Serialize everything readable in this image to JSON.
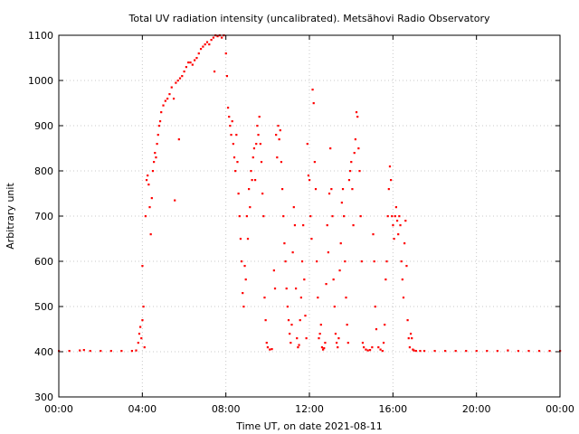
{
  "chart_data": {
    "type": "scatter",
    "title": "Total UV radiation intensity (uncalibrated). Metsähovi Radio Observatory",
    "xlabel": "Time UT, on date 2021-08-11",
    "ylabel": "Arbitrary unit",
    "xlim": [
      0,
      24
    ],
    "ylim": [
      300,
      1100
    ],
    "x_unit": "hours UT",
    "grid": true,
    "legend": "none",
    "xticks": [
      {
        "value": 0,
        "label": "00:00"
      },
      {
        "value": 4,
        "label": "04:00"
      },
      {
        "value": 8,
        "label": "08:00"
      },
      {
        "value": 12,
        "label": "12:00"
      },
      {
        "value": 16,
        "label": "16:00"
      },
      {
        "value": 20,
        "label": "20:00"
      },
      {
        "value": 24,
        "label": "00:00"
      }
    ],
    "yticks": [
      300,
      400,
      500,
      600,
      700,
      800,
      900,
      1000,
      1100
    ],
    "series": [
      {
        "color": "#ff0000",
        "points": [
          [
            0.0,
            402
          ],
          [
            0.5,
            402
          ],
          [
            1.0,
            403
          ],
          [
            1.2,
            404
          ],
          [
            1.5,
            402
          ],
          [
            2.0,
            402
          ],
          [
            2.5,
            402
          ],
          [
            3.0,
            402
          ],
          [
            3.5,
            402
          ],
          [
            3.7,
            403
          ],
          [
            3.8,
            420
          ],
          [
            3.85,
            440
          ],
          [
            3.9,
            455
          ],
          [
            3.95,
            430
          ],
          [
            4.0,
            470
          ],
          [
            4.0,
            590
          ],
          [
            4.05,
            500
          ],
          [
            4.1,
            410
          ],
          [
            4.15,
            700
          ],
          [
            4.2,
            780
          ],
          [
            4.25,
            790
          ],
          [
            4.3,
            770
          ],
          [
            4.35,
            720
          ],
          [
            4.4,
            660
          ],
          [
            4.45,
            740
          ],
          [
            4.5,
            800
          ],
          [
            4.55,
            820
          ],
          [
            4.6,
            840
          ],
          [
            4.65,
            830
          ],
          [
            4.7,
            860
          ],
          [
            4.75,
            880
          ],
          [
            4.8,
            900
          ],
          [
            4.85,
            910
          ],
          [
            4.9,
            930
          ],
          [
            5.0,
            945
          ],
          [
            5.1,
            955
          ],
          [
            5.2,
            960
          ],
          [
            5.3,
            970
          ],
          [
            5.4,
            985
          ],
          [
            5.5,
            960
          ],
          [
            5.55,
            735
          ],
          [
            5.6,
            995
          ],
          [
            5.7,
            1000
          ],
          [
            5.75,
            870
          ],
          [
            5.8,
            1005
          ],
          [
            5.9,
            1010
          ],
          [
            6.0,
            1020
          ],
          [
            6.1,
            1030
          ],
          [
            6.2,
            1040
          ],
          [
            6.3,
            1040
          ],
          [
            6.4,
            1035
          ],
          [
            6.5,
            1045
          ],
          [
            6.6,
            1050
          ],
          [
            6.7,
            1060
          ],
          [
            6.8,
            1070
          ],
          [
            6.9,
            1075
          ],
          [
            7.0,
            1080
          ],
          [
            7.1,
            1085
          ],
          [
            7.2,
            1080
          ],
          [
            7.3,
            1090
          ],
          [
            7.4,
            1095
          ],
          [
            7.45,
            1020
          ],
          [
            7.5,
            1100
          ],
          [
            7.6,
            1098
          ],
          [
            7.7,
            1100
          ],
          [
            7.8,
            1095
          ],
          [
            7.9,
            1100
          ],
          [
            8.0,
            1060
          ],
          [
            8.05,
            1010
          ],
          [
            8.1,
            940
          ],
          [
            8.15,
            920
          ],
          [
            8.2,
            900
          ],
          [
            8.25,
            880
          ],
          [
            8.3,
            910
          ],
          [
            8.35,
            860
          ],
          [
            8.4,
            830
          ],
          [
            8.45,
            800
          ],
          [
            8.5,
            880
          ],
          [
            8.55,
            820
          ],
          [
            8.6,
            750
          ],
          [
            8.65,
            700
          ],
          [
            8.7,
            650
          ],
          [
            8.75,
            600
          ],
          [
            8.8,
            530
          ],
          [
            8.85,
            500
          ],
          [
            8.9,
            590
          ],
          [
            8.95,
            560
          ],
          [
            9.0,
            700
          ],
          [
            9.05,
            650
          ],
          [
            9.1,
            760
          ],
          [
            9.15,
            720
          ],
          [
            9.2,
            800
          ],
          [
            9.25,
            780
          ],
          [
            9.3,
            830
          ],
          [
            9.35,
            850
          ],
          [
            9.4,
            780
          ],
          [
            9.45,
            860
          ],
          [
            9.5,
            900
          ],
          [
            9.55,
            880
          ],
          [
            9.6,
            920
          ],
          [
            9.65,
            860
          ],
          [
            9.7,
            820
          ],
          [
            9.75,
            750
          ],
          [
            9.8,
            700
          ],
          [
            9.85,
            520
          ],
          [
            9.9,
            470
          ],
          [
            9.95,
            420
          ],
          [
            10.0,
            410
          ],
          [
            10.1,
            405
          ],
          [
            10.2,
            406
          ],
          [
            10.3,
            580
          ],
          [
            10.35,
            540
          ],
          [
            10.4,
            880
          ],
          [
            10.45,
            830
          ],
          [
            10.5,
            900
          ],
          [
            10.55,
            870
          ],
          [
            10.6,
            890
          ],
          [
            10.65,
            820
          ],
          [
            10.7,
            760
          ],
          [
            10.75,
            700
          ],
          [
            10.8,
            640
          ],
          [
            10.85,
            600
          ],
          [
            10.9,
            540
          ],
          [
            10.95,
            500
          ],
          [
            11.0,
            470
          ],
          [
            11.05,
            440
          ],
          [
            11.1,
            420
          ],
          [
            11.15,
            460
          ],
          [
            11.2,
            620
          ],
          [
            11.25,
            720
          ],
          [
            11.3,
            680
          ],
          [
            11.35,
            540
          ],
          [
            11.4,
            430
          ],
          [
            11.45,
            410
          ],
          [
            11.5,
            415
          ],
          [
            11.55,
            470
          ],
          [
            11.6,
            520
          ],
          [
            11.65,
            600
          ],
          [
            11.7,
            680
          ],
          [
            11.75,
            560
          ],
          [
            11.8,
            480
          ],
          [
            11.85,
            430
          ],
          [
            11.9,
            860
          ],
          [
            11.95,
            790
          ],
          [
            12.0,
            780
          ],
          [
            12.05,
            700
          ],
          [
            12.1,
            650
          ],
          [
            12.15,
            980
          ],
          [
            12.2,
            950
          ],
          [
            12.25,
            820
          ],
          [
            12.3,
            760
          ],
          [
            12.35,
            600
          ],
          [
            12.4,
            520
          ],
          [
            12.45,
            430
          ],
          [
            12.5,
            440
          ],
          [
            12.55,
            460
          ],
          [
            12.6,
            410
          ],
          [
            12.65,
            405
          ],
          [
            12.7,
            408
          ],
          [
            12.75,
            420
          ],
          [
            12.8,
            550
          ],
          [
            12.85,
            680
          ],
          [
            12.9,
            620
          ],
          [
            12.95,
            750
          ],
          [
            13.0,
            850
          ],
          [
            13.05,
            760
          ],
          [
            13.1,
            700
          ],
          [
            13.15,
            560
          ],
          [
            13.2,
            500
          ],
          [
            13.25,
            440
          ],
          [
            13.3,
            420
          ],
          [
            13.35,
            410
          ],
          [
            13.4,
            430
          ],
          [
            13.45,
            580
          ],
          [
            13.5,
            640
          ],
          [
            13.55,
            730
          ],
          [
            13.6,
            760
          ],
          [
            13.65,
            700
          ],
          [
            13.7,
            600
          ],
          [
            13.75,
            520
          ],
          [
            13.8,
            460
          ],
          [
            13.85,
            420
          ],
          [
            13.9,
            780
          ],
          [
            13.95,
            800
          ],
          [
            14.0,
            820
          ],
          [
            14.05,
            760
          ],
          [
            14.1,
            680
          ],
          [
            14.15,
            840
          ],
          [
            14.2,
            870
          ],
          [
            14.25,
            930
          ],
          [
            14.3,
            920
          ],
          [
            14.35,
            850
          ],
          [
            14.4,
            800
          ],
          [
            14.45,
            700
          ],
          [
            14.5,
            600
          ],
          [
            14.55,
            420
          ],
          [
            14.6,
            410
          ],
          [
            14.7,
            405
          ],
          [
            14.8,
            403
          ],
          [
            14.9,
            404
          ],
          [
            15.0,
            410
          ],
          [
            15.05,
            660
          ],
          [
            15.1,
            600
          ],
          [
            15.15,
            500
          ],
          [
            15.2,
            450
          ],
          [
            15.3,
            410
          ],
          [
            15.4,
            405
          ],
          [
            15.5,
            402
          ],
          [
            15.55,
            420
          ],
          [
            15.6,
            460
          ],
          [
            15.65,
            560
          ],
          [
            15.7,
            600
          ],
          [
            15.75,
            700
          ],
          [
            15.8,
            760
          ],
          [
            15.85,
            810
          ],
          [
            15.9,
            780
          ],
          [
            15.95,
            700
          ],
          [
            16.0,
            680
          ],
          [
            16.05,
            650
          ],
          [
            16.1,
            700
          ],
          [
            16.15,
            720
          ],
          [
            16.2,
            690
          ],
          [
            16.25,
            660
          ],
          [
            16.3,
            700
          ],
          [
            16.35,
            680
          ],
          [
            16.4,
            600
          ],
          [
            16.45,
            560
          ],
          [
            16.5,
            520
          ],
          [
            16.55,
            640
          ],
          [
            16.6,
            690
          ],
          [
            16.65,
            590
          ],
          [
            16.7,
            470
          ],
          [
            16.75,
            430
          ],
          [
            16.8,
            410
          ],
          [
            16.85,
            440
          ],
          [
            16.9,
            430
          ],
          [
            16.95,
            405
          ],
          [
            17.0,
            403
          ],
          [
            17.1,
            402
          ],
          [
            17.3,
            402
          ],
          [
            17.5,
            402
          ],
          [
            18.0,
            402
          ],
          [
            18.5,
            402
          ],
          [
            19.0,
            402
          ],
          [
            19.5,
            402
          ],
          [
            20.0,
            402
          ],
          [
            20.5,
            402
          ],
          [
            21.0,
            402
          ],
          [
            21.5,
            403
          ],
          [
            22.0,
            402
          ],
          [
            22.5,
            402
          ],
          [
            23.0,
            402
          ],
          [
            23.5,
            402
          ],
          [
            24.0,
            402
          ]
        ]
      }
    ]
  }
}
